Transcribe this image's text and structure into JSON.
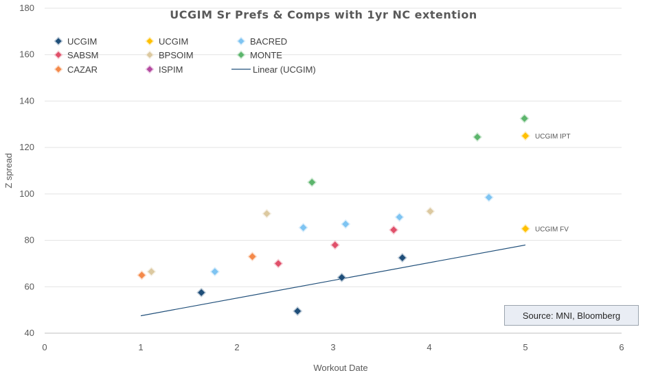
{
  "chart_data": {
    "type": "scatter",
    "title": "UCGIM Sr Prefs & Comps with 1yr NC extention",
    "xlabel": "Workout Date",
    "ylabel": "Z spread",
    "xlim": [
      0,
      6
    ],
    "ylim": [
      40,
      180
    ],
    "x_ticks": [
      "0",
      "1",
      "2",
      "3",
      "4",
      "5",
      "6"
    ],
    "y_ticks": [
      "40",
      "60",
      "80",
      "100",
      "120",
      "140",
      "160",
      "180"
    ],
    "grid": "horizontal",
    "legend_position": "top-left",
    "series": [
      {
        "name": "UCGIM",
        "color": "#1f4e79",
        "marker": "diamond",
        "points": [
          [
            1.63,
            57.5
          ],
          [
            2.63,
            49.5
          ],
          [
            3.09,
            64
          ],
          [
            3.72,
            72.5
          ]
        ]
      },
      {
        "name": "SABSM",
        "color": "#e0506a",
        "marker": "diamond",
        "points": [
          [
            2.43,
            70
          ],
          [
            3.02,
            78
          ],
          [
            3.63,
            84.5
          ]
        ]
      },
      {
        "name": "CAZAR",
        "color": "#f4894a",
        "marker": "diamond",
        "points": [
          [
            1.01,
            65
          ],
          [
            2.16,
            73
          ]
        ]
      },
      {
        "name": "UCGIM",
        "color": "#ffc000",
        "marker": "diamond",
        "points": [
          [
            5.0,
            125
          ],
          [
            5.0,
            85
          ]
        ]
      },
      {
        "name": "BPSOIM",
        "color": "#dcc9a0",
        "marker": "diamond",
        "points": [
          [
            1.11,
            66.5
          ],
          [
            2.31,
            91.5
          ],
          [
            4.01,
            92.5
          ]
        ]
      },
      {
        "name": "ISPIM",
        "color": "#b44aa0",
        "marker": "diamond",
        "points": []
      },
      {
        "name": "BACRED",
        "color": "#7ec4f2",
        "marker": "diamond",
        "points": [
          [
            1.77,
            66.5
          ],
          [
            2.69,
            85.5
          ],
          [
            3.13,
            87
          ],
          [
            3.69,
            90
          ],
          [
            4.62,
            98.5
          ]
        ]
      },
      {
        "name": "MONTE",
        "color": "#5cb56c",
        "marker": "diamond",
        "points": [
          [
            2.78,
            105
          ],
          [
            4.5,
            124.5
          ],
          [
            4.99,
            132.5
          ]
        ]
      }
    ],
    "trendline": {
      "name": "Linear (UCGIM)",
      "color": "#1f4e79",
      "points": [
        [
          1.0,
          47.5
        ],
        [
          5.0,
          78
        ]
      ]
    },
    "annotations": [
      {
        "text": "UCGIM IPT",
        "x": 5.0,
        "y": 125
      },
      {
        "text": "UCGIM FV",
        "x": 5.0,
        "y": 85
      }
    ],
    "source": "Source: MNI, Bloomberg"
  }
}
